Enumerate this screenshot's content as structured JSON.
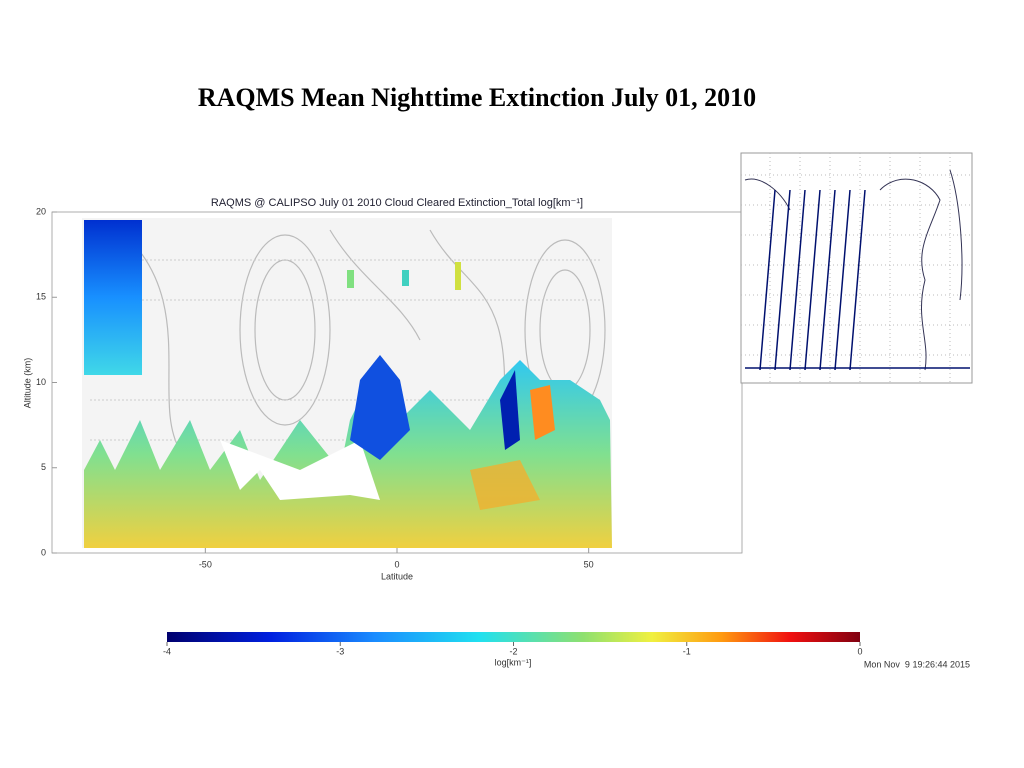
{
  "slide_title": "RAQMS Mean Nighttime Extinction July 01, 2010",
  "timestamp": "Mon Nov  9 19:26:44 2015",
  "chart_data": {
    "type": "heatmap",
    "title": "RAQMS @ CALIPSO July 01 2010 Cloud Cleared Extinction_Total log[km⁻¹]",
    "xlabel": "Latitude",
    "ylabel": "Altitude (km)",
    "xlim": [
      -90,
      90
    ],
    "xticks": [
      -50,
      0,
      50
    ],
    "ylim": [
      0,
      20
    ],
    "yticks": [
      0,
      5,
      10,
      15,
      20
    ],
    "colorbar": {
      "label": "log[km⁻¹]",
      "lim": [
        -4,
        0
      ],
      "ticks": [
        -4,
        -3,
        -2,
        -1,
        0
      ]
    }
  }
}
